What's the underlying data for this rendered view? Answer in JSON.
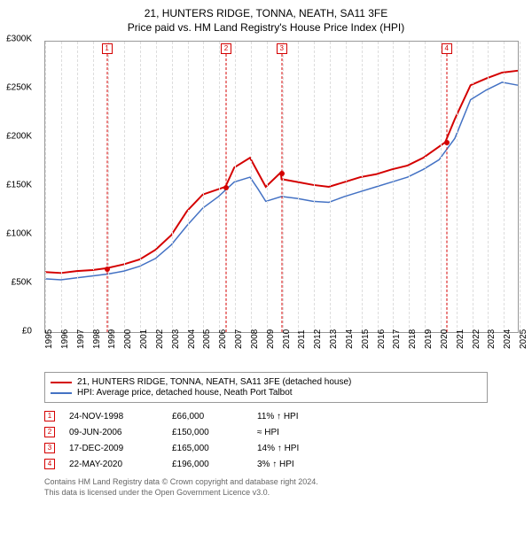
{
  "title": "21, HUNTERS RIDGE, TONNA, NEATH, SA11 3FE",
  "subtitle": "Price paid vs. HM Land Registry's House Price Index (HPI)",
  "chart": {
    "type": "line",
    "ylim": [
      0,
      300000
    ],
    "ytick_step": 50000,
    "y_ticks": [
      "£0",
      "£50K",
      "£100K",
      "£150K",
      "£200K",
      "£250K",
      "£300K"
    ],
    "xlim": [
      1995,
      2025
    ],
    "x_ticks": [
      1995,
      1996,
      1997,
      1998,
      1999,
      2000,
      2001,
      2002,
      2003,
      2004,
      2005,
      2006,
      2007,
      2008,
      2009,
      2010,
      2011,
      2012,
      2013,
      2014,
      2015,
      2016,
      2017,
      2018,
      2019,
      2020,
      2021,
      2022,
      2023,
      2024,
      2025
    ],
    "background_color": "#ffffff",
    "grid_color": "#dddddd",
    "series": [
      {
        "name": "property",
        "color": "#d40000",
        "width": 2,
        "points": [
          [
            1995,
            62000
          ],
          [
            1996,
            61000
          ],
          [
            1997,
            63000
          ],
          [
            1998,
            64000
          ],
          [
            1998.9,
            66000
          ],
          [
            2000,
            70000
          ],
          [
            2001,
            75000
          ],
          [
            2002,
            85000
          ],
          [
            2003,
            100000
          ],
          [
            2004,
            125000
          ],
          [
            2005,
            142000
          ],
          [
            2006.44,
            150000
          ],
          [
            2007,
            170000
          ],
          [
            2008,
            180000
          ],
          [
            2008.5,
            165000
          ],
          [
            2009,
            150000
          ],
          [
            2009.96,
            165000
          ],
          [
            2010,
            158000
          ],
          [
            2011,
            155000
          ],
          [
            2012,
            152000
          ],
          [
            2013,
            150000
          ],
          [
            2014,
            155000
          ],
          [
            2015,
            160000
          ],
          [
            2016,
            163000
          ],
          [
            2017,
            168000
          ],
          [
            2018,
            172000
          ],
          [
            2019,
            180000
          ],
          [
            2020.39,
            196000
          ],
          [
            2021,
            220000
          ],
          [
            2022,
            255000
          ],
          [
            2023,
            262000
          ],
          [
            2024,
            268000
          ],
          [
            2025,
            270000
          ]
        ]
      },
      {
        "name": "hpi",
        "color": "#4472c4",
        "width": 1.5,
        "points": [
          [
            1995,
            55000
          ],
          [
            1996,
            54000
          ],
          [
            1997,
            56000
          ],
          [
            1998,
            58000
          ],
          [
            1999,
            60000
          ],
          [
            2000,
            63000
          ],
          [
            2001,
            68000
          ],
          [
            2002,
            76000
          ],
          [
            2003,
            90000
          ],
          [
            2004,
            110000
          ],
          [
            2005,
            128000
          ],
          [
            2006,
            140000
          ],
          [
            2007,
            155000
          ],
          [
            2008,
            160000
          ],
          [
            2008.5,
            148000
          ],
          [
            2009,
            135000
          ],
          [
            2010,
            140000
          ],
          [
            2011,
            138000
          ],
          [
            2012,
            135000
          ],
          [
            2013,
            134000
          ],
          [
            2014,
            140000
          ],
          [
            2015,
            145000
          ],
          [
            2016,
            150000
          ],
          [
            2017,
            155000
          ],
          [
            2018,
            160000
          ],
          [
            2019,
            168000
          ],
          [
            2020,
            178000
          ],
          [
            2021,
            200000
          ],
          [
            2022,
            240000
          ],
          [
            2023,
            250000
          ],
          [
            2024,
            258000
          ],
          [
            2025,
            255000
          ]
        ]
      }
    ],
    "markers": [
      {
        "num": "1",
        "x": 1998.9,
        "y": 66000,
        "color": "#d40000"
      },
      {
        "num": "2",
        "x": 2006.44,
        "y": 150000,
        "color": "#d40000"
      },
      {
        "num": "3",
        "x": 2009.96,
        "y": 165000,
        "color": "#d40000"
      },
      {
        "num": "4",
        "x": 2020.39,
        "y": 196000,
        "color": "#d40000"
      }
    ]
  },
  "legend": [
    {
      "color": "#d40000",
      "label": "21, HUNTERS RIDGE, TONNA, NEATH, SA11 3FE (detached house)"
    },
    {
      "color": "#4472c4",
      "label": "HPI: Average price, detached house, Neath Port Talbot"
    }
  ],
  "sales": [
    {
      "num": "1",
      "date": "24-NOV-1998",
      "price": "£66,000",
      "diff": "11% ↑ HPI",
      "color": "#d40000"
    },
    {
      "num": "2",
      "date": "09-JUN-2006",
      "price": "£150,000",
      "diff": "≈ HPI",
      "color": "#d40000"
    },
    {
      "num": "3",
      "date": "17-DEC-2009",
      "price": "£165,000",
      "diff": "14% ↑ HPI",
      "color": "#d40000"
    },
    {
      "num": "4",
      "date": "22-MAY-2020",
      "price": "£196,000",
      "diff": "3% ↑ HPI",
      "color": "#d40000"
    }
  ],
  "footer": {
    "line1": "Contains HM Land Registry data © Crown copyright and database right 2024.",
    "line2": "This data is licensed under the Open Government Licence v3.0."
  }
}
